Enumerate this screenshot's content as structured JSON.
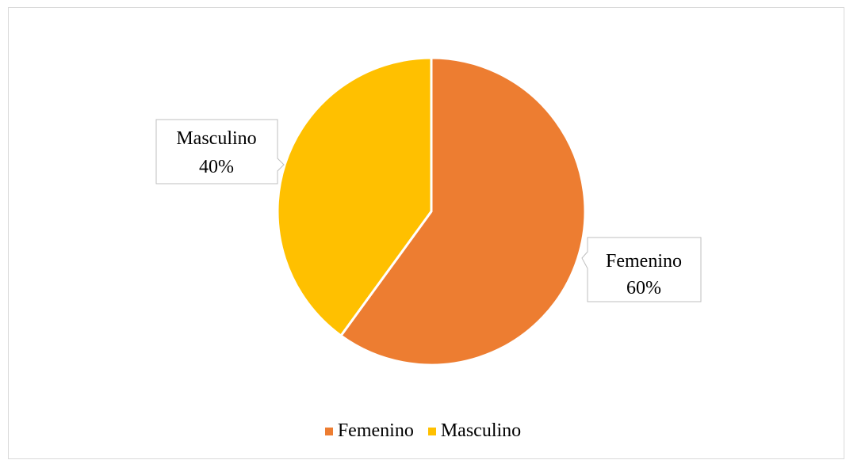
{
  "chart_data": {
    "type": "pie",
    "title": "",
    "categories": [
      "Femenino",
      "Masculino"
    ],
    "values": [
      60,
      40
    ],
    "value_labels": [
      "60%",
      "40%"
    ],
    "colors": [
      "#ED7D31",
      "#FFC000"
    ],
    "legend_position": "bottom",
    "start_angle": "top-clockwise"
  },
  "legend": {
    "items": [
      {
        "label": "Femenino",
        "color": "#ED7D31"
      },
      {
        "label": "Masculino",
        "color": "#FFC000"
      }
    ]
  }
}
